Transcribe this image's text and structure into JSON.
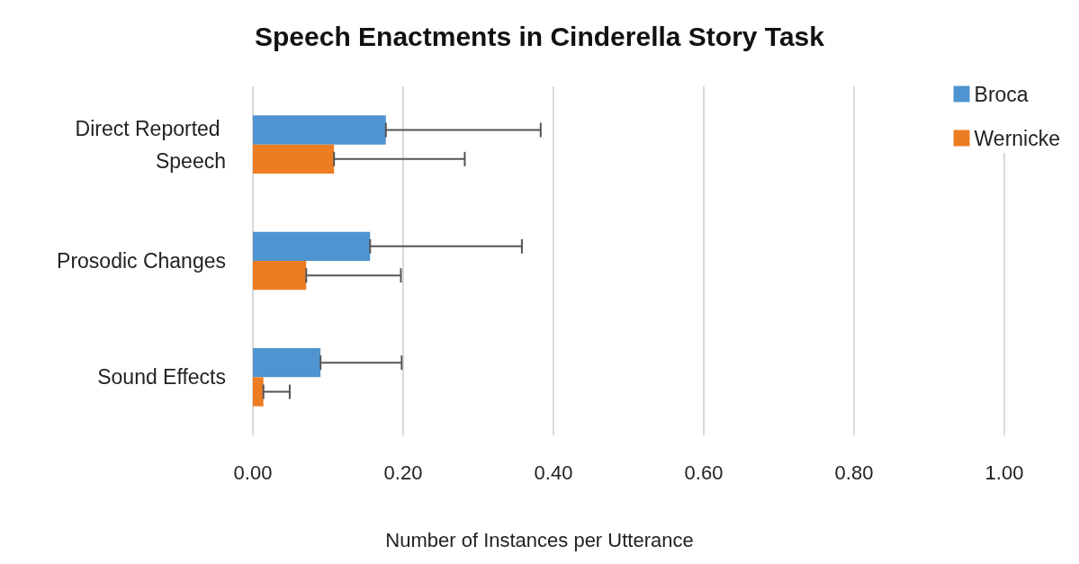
{
  "chart_data": {
    "type": "bar",
    "orientation": "horizontal",
    "title": "Speech Enactments in Cinderella Story Task",
    "xlabel": "Number of Instances per Utterance",
    "categories": [
      "Direct Reported Speech",
      "Prosodic Changes",
      "Sound Effects"
    ],
    "series": [
      {
        "name": "Broca",
        "color": "#4f94d0",
        "values": [
          0.177,
          0.156,
          0.09
        ],
        "errors": [
          [
            0.177,
            0.383
          ],
          [
            0.156,
            0.358
          ],
          [
            0.09,
            0.198
          ]
        ]
      },
      {
        "name": "Wernicke",
        "color": "#ed7d22",
        "values": [
          0.108,
          0.071,
          0.014
        ],
        "errors": [
          [
            0.108,
            0.282
          ],
          [
            0.071,
            0.197
          ],
          [
            0.014,
            0.049
          ]
        ]
      }
    ],
    "xlim": [
      0,
      1
    ],
    "xticks": [
      {
        "value": 0,
        "label": "0.00"
      },
      {
        "value": 0.2,
        "label": "0.20"
      },
      {
        "value": 0.4,
        "label": "0.40"
      },
      {
        "value": 0.6,
        "label": "0.60"
      },
      {
        "value": 0.8,
        "label": "0.80"
      },
      {
        "value": 1,
        "label": "1.00"
      }
    ],
    "grid": "x",
    "legend": "top right"
  }
}
